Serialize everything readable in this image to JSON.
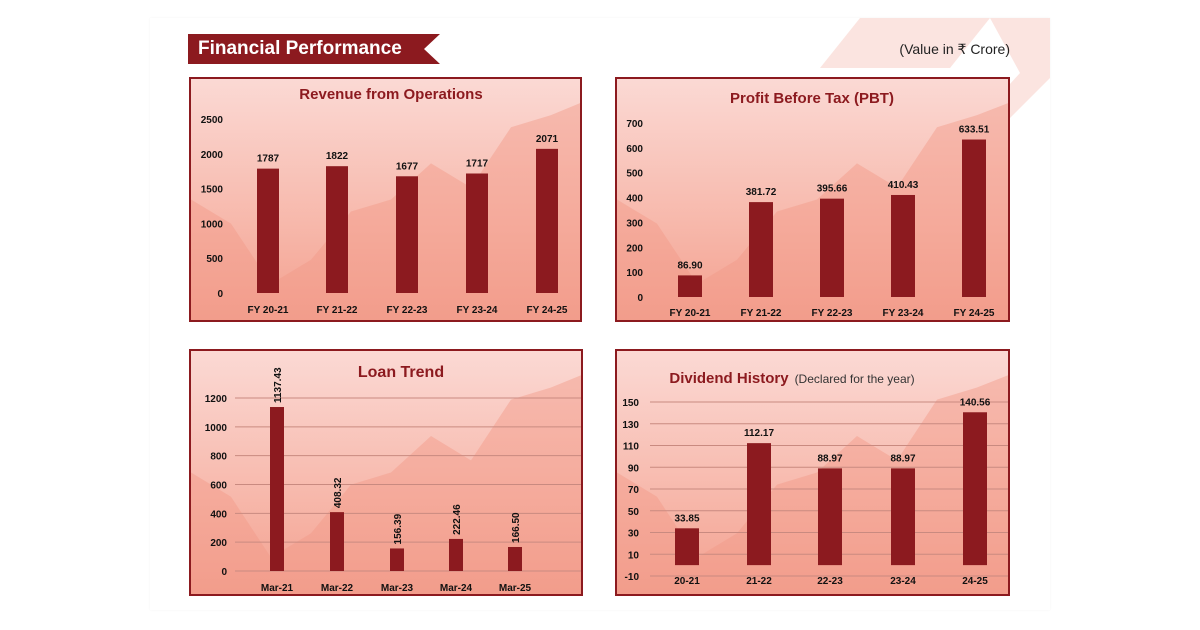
{
  "header": {
    "title": "Financial Performance",
    "unit_note": "(Value in ₹ Crore)"
  },
  "colors": {
    "bar": "#8c1a1f",
    "accent": "#8c1a1f",
    "panel_bg": "#f7b8ab"
  },
  "chart_data": [
    {
      "type": "bar",
      "title": "Revenue from Operations",
      "subtitle": "",
      "categories": [
        "FY 20-21",
        "FY 21-22",
        "FY 22-23",
        "FY 23-24",
        "FY 24-25"
      ],
      "values": [
        1787,
        1822,
        1677,
        1717,
        2071
      ],
      "value_labels": [
        "1787",
        "1822",
        "1677",
        "1717",
        "2071"
      ],
      "ylim": [
        0,
        2500
      ],
      "yticks": [
        0,
        500,
        1000,
        1500,
        2000,
        2500
      ],
      "grid": false
    },
    {
      "type": "bar",
      "title": "Profit Before Tax (PBT)",
      "subtitle": "",
      "categories": [
        "FY 20-21",
        "FY 21-22",
        "FY 22-23",
        "FY 23-24",
        "FY 24-25"
      ],
      "values": [
        86.9,
        381.72,
        395.66,
        410.43,
        633.51
      ],
      "value_labels": [
        "86.90",
        "381.72",
        "395.66",
        "410.43",
        "633.51"
      ],
      "ylim": [
        0,
        700
      ],
      "yticks": [
        0,
        100,
        200,
        300,
        400,
        500,
        600,
        700
      ],
      "grid": false
    },
    {
      "type": "bar",
      "title": "Loan Trend",
      "subtitle": "",
      "categories": [
        "Mar-21",
        "Mar-22",
        "Mar-23",
        "Mar-24",
        "Mar-25"
      ],
      "values": [
        1137.43,
        408.32,
        156.39,
        222.46,
        166.5
      ],
      "value_labels": [
        "1137.43",
        "408.32",
        "156.39",
        "222.46",
        "166.50"
      ],
      "ylim": [
        0,
        1200
      ],
      "yticks": [
        0,
        200,
        400,
        600,
        800,
        1000,
        1200
      ],
      "grid": true
    },
    {
      "type": "bar",
      "title": "Dividend History",
      "subtitle": "(Declared for the year)",
      "categories": [
        "20-21",
        "21-22",
        "22-23",
        "23-24",
        "24-25"
      ],
      "values": [
        33.85,
        112.17,
        88.97,
        88.97,
        140.56
      ],
      "value_labels": [
        "33.85",
        "112.17",
        "88.97",
        "88.97",
        "140.56"
      ],
      "ylim": [
        -10,
        150
      ],
      "yticks": [
        -10,
        10,
        30,
        50,
        70,
        90,
        110,
        130,
        150
      ],
      "grid": true
    }
  ]
}
